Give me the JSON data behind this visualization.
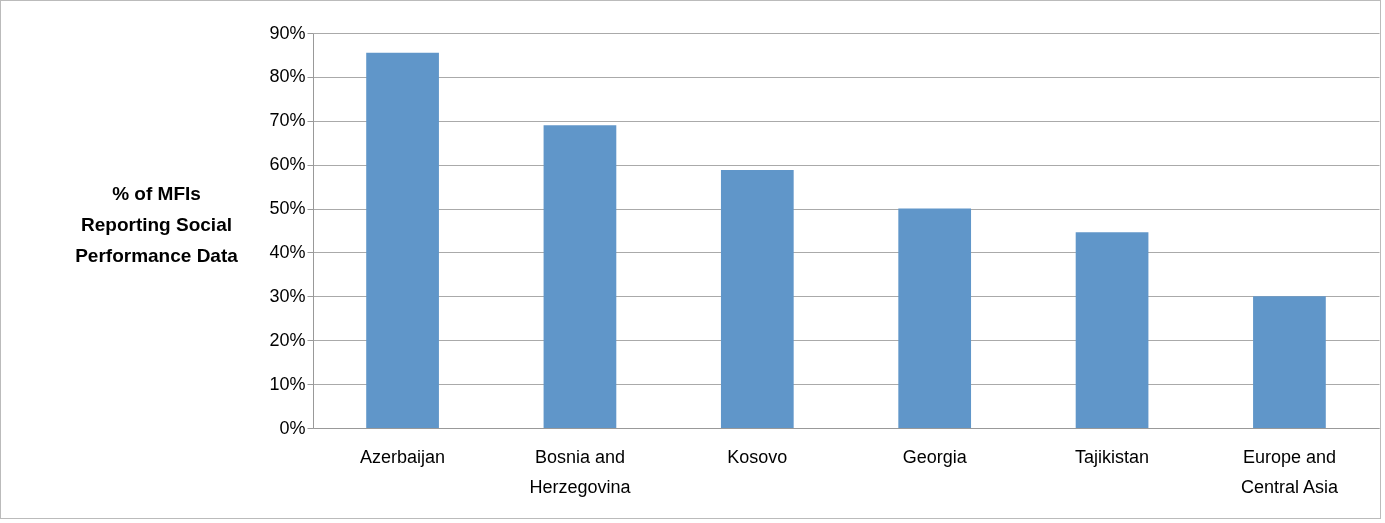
{
  "chart_data": {
    "type": "bar",
    "ylabel": "% of MFIs Reporting Social Performance Data",
    "categories": [
      "Azerbaijan",
      "Bosnia and Herzegovina",
      "Kosovo",
      "Georgia",
      "Tajikistan",
      "Europe and Central Asia"
    ],
    "values": [
      85.5,
      69,
      58.8,
      50,
      44.6,
      30
    ],
    "color": "#6096c9",
    "ylim": [
      0,
      90
    ],
    "yticks": [
      {
        "value": 0,
        "label": "0%"
      },
      {
        "value": 10,
        "label": "10%"
      },
      {
        "value": 20,
        "label": "20%"
      },
      {
        "value": 30,
        "label": "30%"
      },
      {
        "value": 40,
        "label": "40%"
      },
      {
        "value": 50,
        "label": "50%"
      },
      {
        "value": 60,
        "label": "60%"
      },
      {
        "value": 70,
        "label": "70%"
      },
      {
        "value": 80,
        "label": "80%"
      },
      {
        "value": 90,
        "label": "90%"
      }
    ],
    "grid": "y"
  }
}
